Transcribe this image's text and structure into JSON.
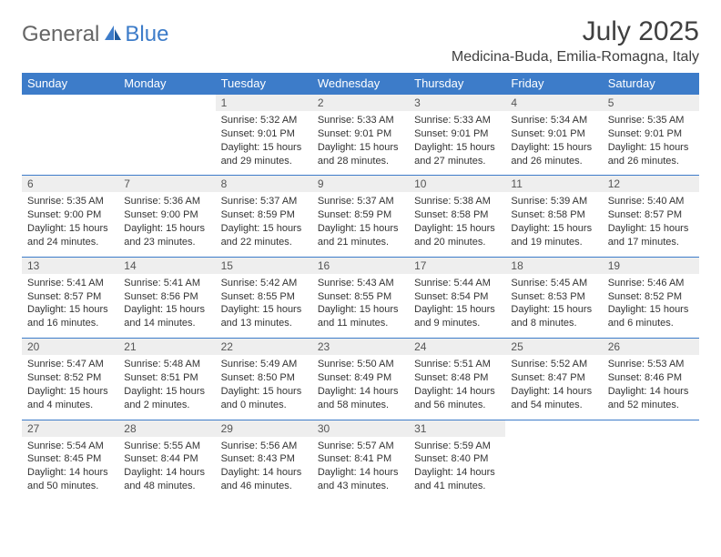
{
  "logo": {
    "part1": "General",
    "part2": "Blue"
  },
  "title": "July 2025",
  "location": "Medicina-Buda, Emilia-Romagna, Italy",
  "colors": {
    "header_bg": "#3d7cc9",
    "header_text": "#ffffff",
    "daynum_bg": "#eeeeee",
    "border": "#3d7cc9",
    "text": "#333333",
    "logo_gray": "#666666",
    "logo_blue": "#3d7cc9"
  },
  "weekdays": [
    "Sunday",
    "Monday",
    "Tuesday",
    "Wednesday",
    "Thursday",
    "Friday",
    "Saturday"
  ],
  "weeks": [
    [
      null,
      null,
      {
        "n": "1",
        "sr": "5:32 AM",
        "ss": "9:01 PM",
        "dl": "15 hours and 29 minutes."
      },
      {
        "n": "2",
        "sr": "5:33 AM",
        "ss": "9:01 PM",
        "dl": "15 hours and 28 minutes."
      },
      {
        "n": "3",
        "sr": "5:33 AM",
        "ss": "9:01 PM",
        "dl": "15 hours and 27 minutes."
      },
      {
        "n": "4",
        "sr": "5:34 AM",
        "ss": "9:01 PM",
        "dl": "15 hours and 26 minutes."
      },
      {
        "n": "5",
        "sr": "5:35 AM",
        "ss": "9:01 PM",
        "dl": "15 hours and 26 minutes."
      }
    ],
    [
      {
        "n": "6",
        "sr": "5:35 AM",
        "ss": "9:00 PM",
        "dl": "15 hours and 24 minutes."
      },
      {
        "n": "7",
        "sr": "5:36 AM",
        "ss": "9:00 PM",
        "dl": "15 hours and 23 minutes."
      },
      {
        "n": "8",
        "sr": "5:37 AM",
        "ss": "8:59 PM",
        "dl": "15 hours and 22 minutes."
      },
      {
        "n": "9",
        "sr": "5:37 AM",
        "ss": "8:59 PM",
        "dl": "15 hours and 21 minutes."
      },
      {
        "n": "10",
        "sr": "5:38 AM",
        "ss": "8:58 PM",
        "dl": "15 hours and 20 minutes."
      },
      {
        "n": "11",
        "sr": "5:39 AM",
        "ss": "8:58 PM",
        "dl": "15 hours and 19 minutes."
      },
      {
        "n": "12",
        "sr": "5:40 AM",
        "ss": "8:57 PM",
        "dl": "15 hours and 17 minutes."
      }
    ],
    [
      {
        "n": "13",
        "sr": "5:41 AM",
        "ss": "8:57 PM",
        "dl": "15 hours and 16 minutes."
      },
      {
        "n": "14",
        "sr": "5:41 AM",
        "ss": "8:56 PM",
        "dl": "15 hours and 14 minutes."
      },
      {
        "n": "15",
        "sr": "5:42 AM",
        "ss": "8:55 PM",
        "dl": "15 hours and 13 minutes."
      },
      {
        "n": "16",
        "sr": "5:43 AM",
        "ss": "8:55 PM",
        "dl": "15 hours and 11 minutes."
      },
      {
        "n": "17",
        "sr": "5:44 AM",
        "ss": "8:54 PM",
        "dl": "15 hours and 9 minutes."
      },
      {
        "n": "18",
        "sr": "5:45 AM",
        "ss": "8:53 PM",
        "dl": "15 hours and 8 minutes."
      },
      {
        "n": "19",
        "sr": "5:46 AM",
        "ss": "8:52 PM",
        "dl": "15 hours and 6 minutes."
      }
    ],
    [
      {
        "n": "20",
        "sr": "5:47 AM",
        "ss": "8:52 PM",
        "dl": "15 hours and 4 minutes."
      },
      {
        "n": "21",
        "sr": "5:48 AM",
        "ss": "8:51 PM",
        "dl": "15 hours and 2 minutes."
      },
      {
        "n": "22",
        "sr": "5:49 AM",
        "ss": "8:50 PM",
        "dl": "15 hours and 0 minutes."
      },
      {
        "n": "23",
        "sr": "5:50 AM",
        "ss": "8:49 PM",
        "dl": "14 hours and 58 minutes."
      },
      {
        "n": "24",
        "sr": "5:51 AM",
        "ss": "8:48 PM",
        "dl": "14 hours and 56 minutes."
      },
      {
        "n": "25",
        "sr": "5:52 AM",
        "ss": "8:47 PM",
        "dl": "14 hours and 54 minutes."
      },
      {
        "n": "26",
        "sr": "5:53 AM",
        "ss": "8:46 PM",
        "dl": "14 hours and 52 minutes."
      }
    ],
    [
      {
        "n": "27",
        "sr": "5:54 AM",
        "ss": "8:45 PM",
        "dl": "14 hours and 50 minutes."
      },
      {
        "n": "28",
        "sr": "5:55 AM",
        "ss": "8:44 PM",
        "dl": "14 hours and 48 minutes."
      },
      {
        "n": "29",
        "sr": "5:56 AM",
        "ss": "8:43 PM",
        "dl": "14 hours and 46 minutes."
      },
      {
        "n": "30",
        "sr": "5:57 AM",
        "ss": "8:41 PM",
        "dl": "14 hours and 43 minutes."
      },
      {
        "n": "31",
        "sr": "5:59 AM",
        "ss": "8:40 PM",
        "dl": "14 hours and 41 minutes."
      },
      null,
      null
    ]
  ],
  "labels": {
    "sunrise": "Sunrise:",
    "sunset": "Sunset:",
    "daylight": "Daylight:"
  }
}
